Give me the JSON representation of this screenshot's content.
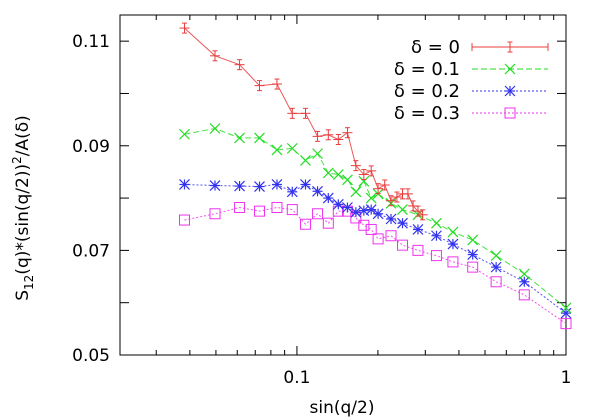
{
  "chart_data": {
    "type": "scatter",
    "title": "",
    "xlabel": "sin(q/2)",
    "ylabel_parts": {
      "base": "S",
      "subscript": "12",
      "middle": "(q)*(sin(q/2))",
      "superscript": "2",
      "tail": "/A(δ)"
    },
    "x_scale": "log",
    "xlim": [
      0.022,
      1.0
    ],
    "ylim": [
      0.05,
      0.115
    ],
    "x_ticks": [
      {
        "value": 0.1,
        "label": "0.1"
      },
      {
        "value": 1.0,
        "label": "1"
      }
    ],
    "y_ticks": [
      {
        "value": 0.05,
        "label": "0.05"
      },
      {
        "value": 0.07,
        "label": "0.07"
      },
      {
        "value": 0.09,
        "label": "0.09"
      },
      {
        "value": 0.11,
        "label": "0.11"
      }
    ],
    "grid": false,
    "legend_position": "top-right",
    "series": [
      {
        "name": "δ = 0",
        "color": "#e83c3c",
        "marker": "plus",
        "line": "solid",
        "x": [
          0.0382,
          0.0496,
          0.0612,
          0.0726,
          0.0843,
          0.0961,
          0.1076,
          0.1193,
          0.1308,
          0.1425,
          0.1541,
          0.1656,
          0.1773,
          0.1888,
          0.2003,
          0.212,
          0.2237,
          0.2353,
          0.2468,
          0.2585,
          0.2702,
          0.2817,
          0.2933
        ],
        "y": [
          0.1125,
          0.1072,
          0.1055,
          0.1015,
          0.1018,
          0.0962,
          0.0962,
          0.0918,
          0.0921,
          0.0912,
          0.0925,
          0.0862,
          0.0845,
          0.0852,
          0.0818,
          0.0825,
          0.0795,
          0.0802,
          0.0808,
          0.0808,
          0.0785,
          0.0775,
          0.0768
        ]
      },
      {
        "name": "δ = 0.1",
        "color": "#22dd22",
        "marker": "x",
        "line": "dashed",
        "x": [
          0.0382,
          0.0496,
          0.0612,
          0.0726,
          0.0843,
          0.0961,
          0.1076,
          0.1193,
          0.1308,
          0.1425,
          0.1541,
          0.1656,
          0.1773,
          0.1888,
          0.2003,
          0.2237,
          0.2468,
          0.2817,
          0.33,
          0.38,
          0.45,
          0.55,
          0.7,
          1.0
        ],
        "y": [
          0.0922,
          0.0933,
          0.0915,
          0.0915,
          0.0892,
          0.0895,
          0.0872,
          0.0885,
          0.0848,
          0.0845,
          0.0835,
          0.0812,
          0.0832,
          0.08,
          0.0808,
          0.079,
          0.0778,
          0.0768,
          0.0752,
          0.0735,
          0.072,
          0.069,
          0.0655,
          0.059
        ]
      },
      {
        "name": "δ = 0.2",
        "color": "#3333ee",
        "marker": "star",
        "line": "dotted",
        "x": [
          0.0382,
          0.0496,
          0.0612,
          0.0726,
          0.0843,
          0.0961,
          0.1076,
          0.1193,
          0.1308,
          0.1425,
          0.1541,
          0.1656,
          0.1773,
          0.1888,
          0.2003,
          0.2237,
          0.2468,
          0.2817,
          0.33,
          0.38,
          0.45,
          0.55,
          0.7,
          1.0
        ],
        "y": [
          0.0826,
          0.0824,
          0.0823,
          0.0822,
          0.0826,
          0.0812,
          0.0826,
          0.0813,
          0.08,
          0.0788,
          0.0782,
          0.0773,
          0.0776,
          0.0778,
          0.077,
          0.076,
          0.0752,
          0.074,
          0.0728,
          0.0712,
          0.0692,
          0.0668,
          0.064,
          0.058
        ]
      },
      {
        "name": "δ = 0.3",
        "color": "#ee33ee",
        "marker": "square",
        "line": "dotted",
        "x": [
          0.0382,
          0.0496,
          0.0612,
          0.0726,
          0.0843,
          0.0961,
          0.1076,
          0.1193,
          0.1308,
          0.1425,
          0.1541,
          0.1656,
          0.1773,
          0.1888,
          0.2003,
          0.2237,
          0.2468,
          0.2817,
          0.33,
          0.38,
          0.45,
          0.55,
          0.7,
          1.0
        ],
        "y": [
          0.0758,
          0.077,
          0.0782,
          0.0775,
          0.0782,
          0.0778,
          0.075,
          0.077,
          0.0752,
          0.0775,
          0.0775,
          0.0762,
          0.0748,
          0.074,
          0.0722,
          0.0728,
          0.071,
          0.07,
          0.069,
          0.0678,
          0.0668,
          0.064,
          0.0615,
          0.056
        ]
      }
    ]
  }
}
